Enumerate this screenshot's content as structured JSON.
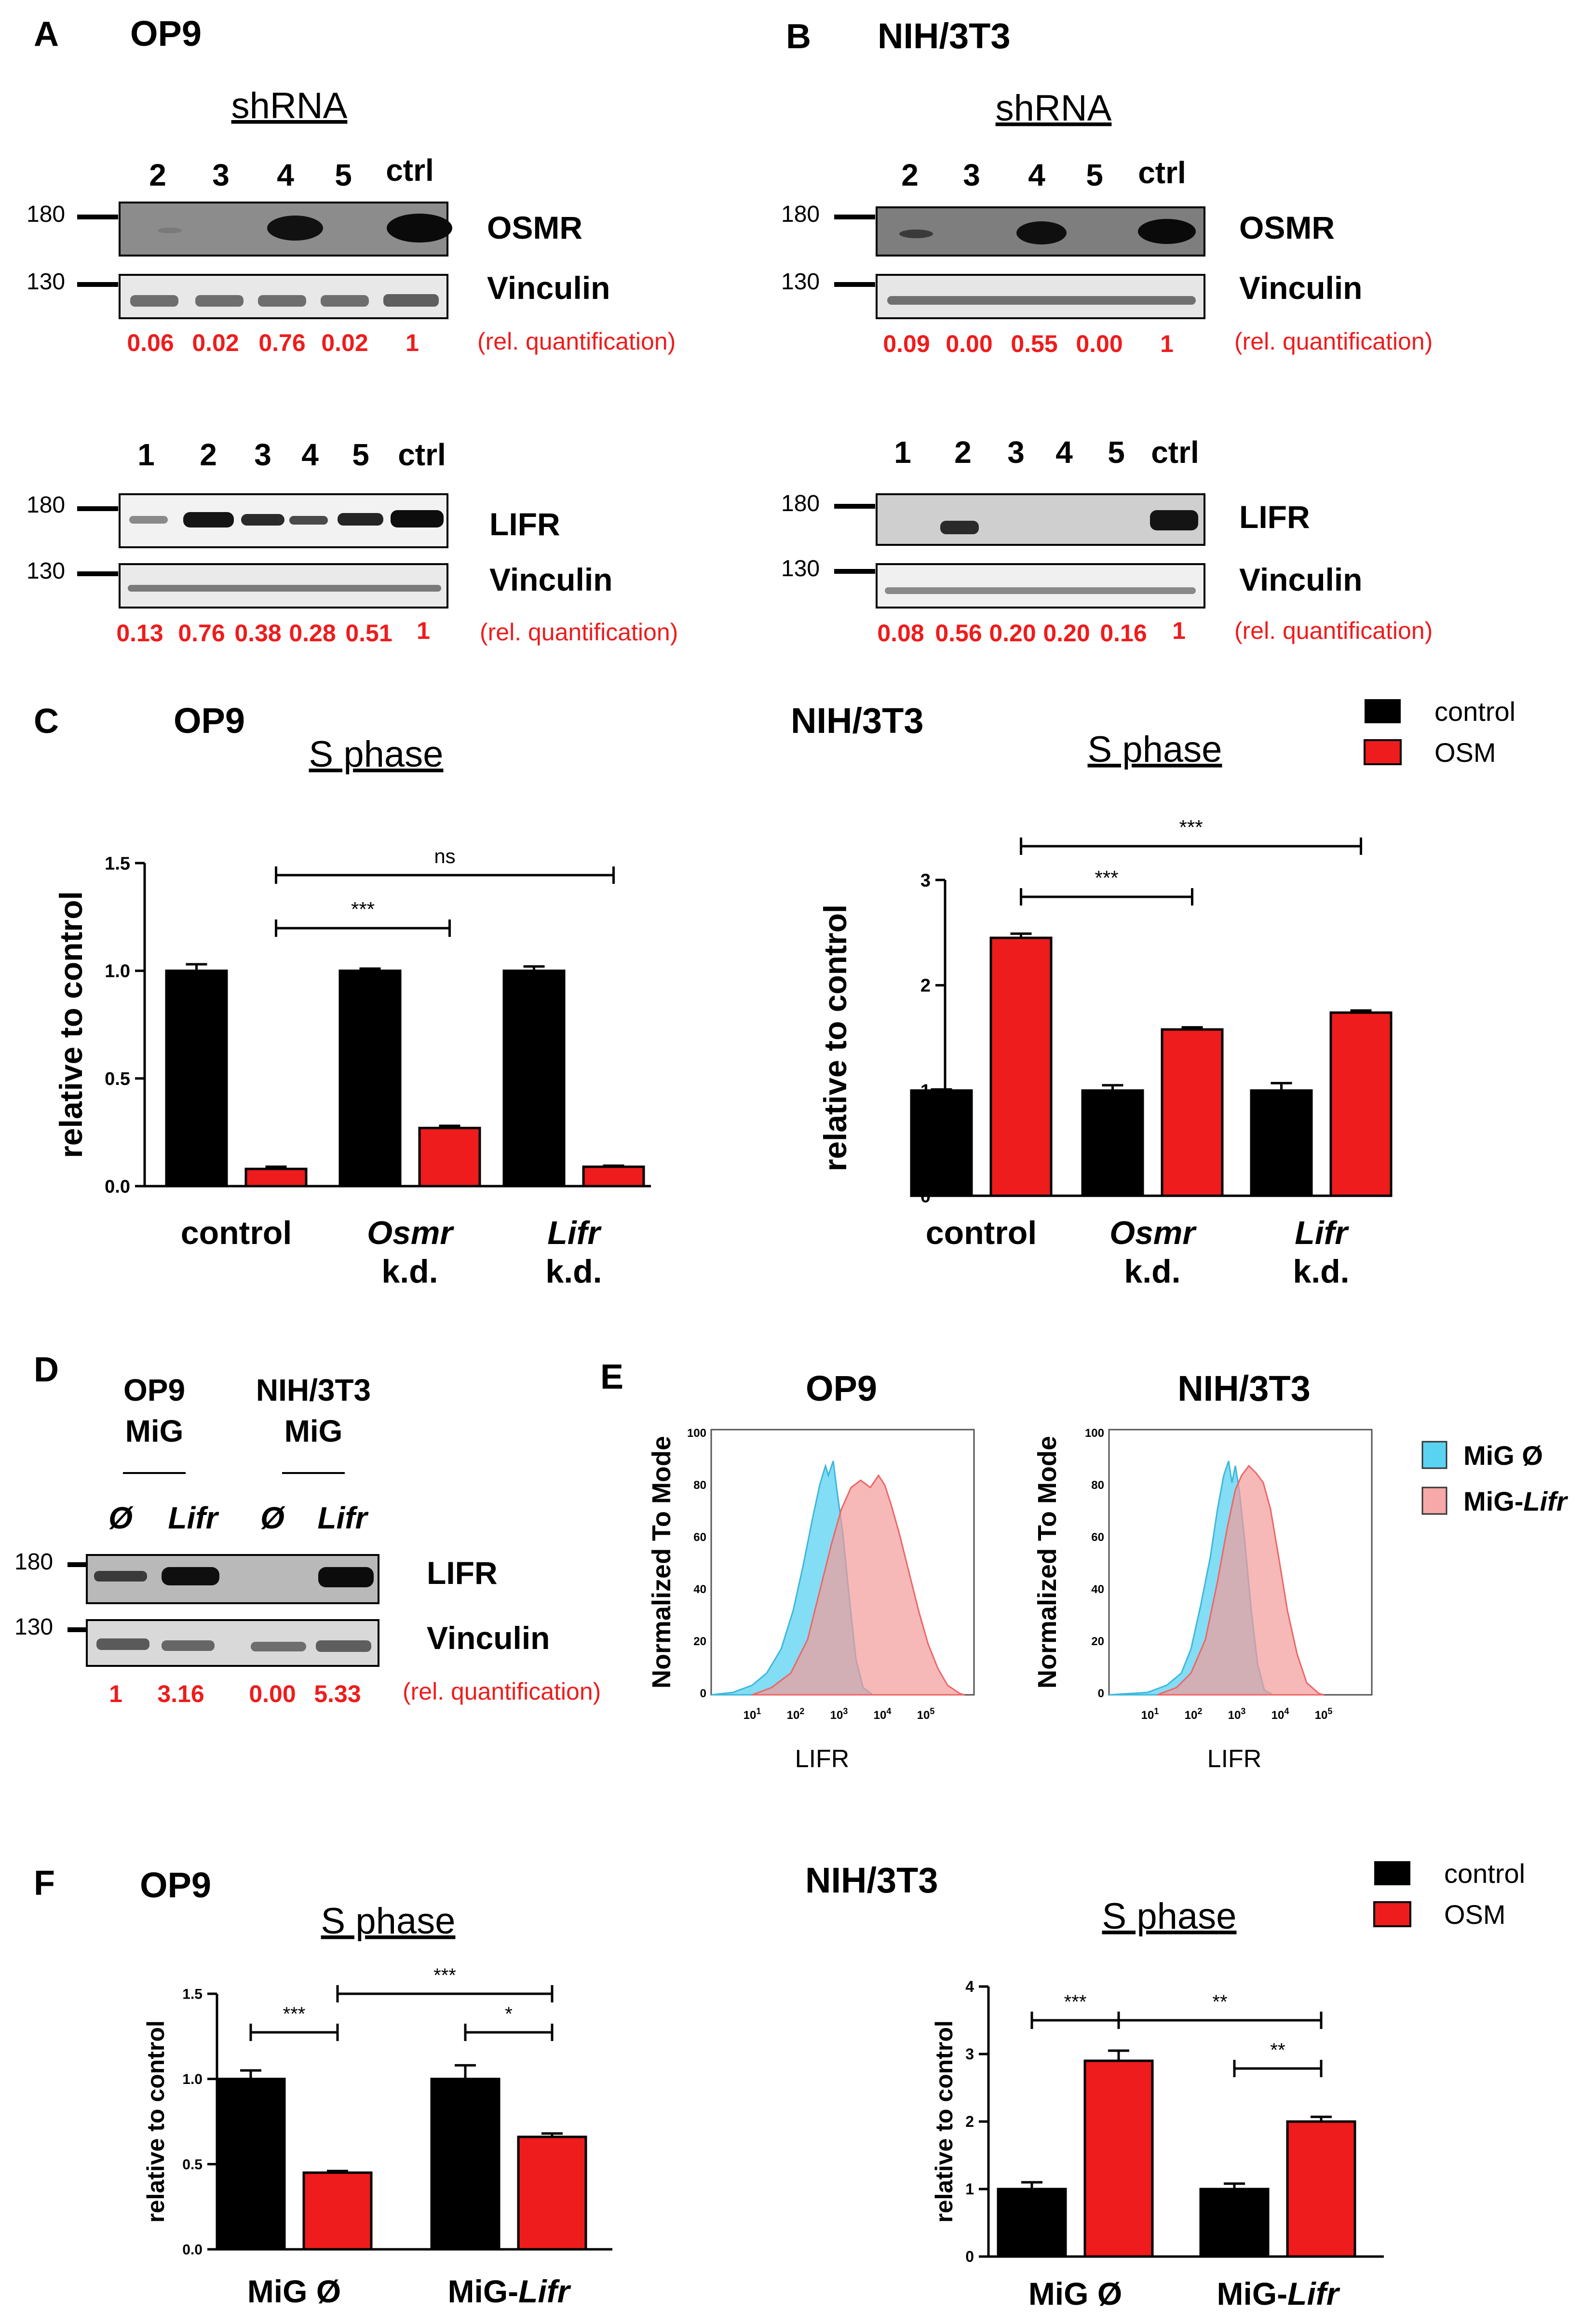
{
  "figure": {
    "panel_labels": [
      "A",
      "B",
      "C",
      "D",
      "E",
      "F"
    ],
    "colors": {
      "control": "#000000",
      "osm": "#ee1c1c",
      "quant_text": "#ee1c1c",
      "mig_empty": "#5ad2f2",
      "mig_lifr": "#f7a8a8"
    },
    "panelA": {
      "cell": "OP9",
      "shrna": "shRNA",
      "lanes_top": [
        "2",
        "3",
        "4",
        "5",
        "ctrl"
      ],
      "lanes_bottom": [
        "1",
        "2",
        "3",
        "4",
        "5",
        "ctrl"
      ],
      "mw": [
        "180",
        "130",
        "180",
        "130"
      ],
      "proteins": [
        "OSMR",
        "Vinculin",
        "LIFR",
        "Vinculin"
      ],
      "quant_top": [
        "0.06",
        "0.02",
        "0.76",
        "0.02",
        "1"
      ],
      "quant_bottom": [
        "0.13",
        "0.76",
        "0.38",
        "0.28",
        "0.51",
        "1"
      ],
      "rel": "(rel. quantification)"
    },
    "panelB": {
      "cell": "NIH/3T3",
      "shrna": "shRNA",
      "lanes_top": [
        "2",
        "3",
        "4",
        "5",
        "ctrl"
      ],
      "lanes_bottom": [
        "1",
        "2",
        "3",
        "4",
        "5",
        "ctrl"
      ],
      "mw": [
        "180",
        "130",
        "180",
        "130"
      ],
      "proteins": [
        "OSMR",
        "Vinculin",
        "LIFR",
        "Vinculin"
      ],
      "quant_top": [
        "0.09",
        "0.00",
        "0.55",
        "0.00",
        "1"
      ],
      "quant_bottom": [
        "0.08",
        "0.56",
        "0.20",
        "0.20",
        "0.16",
        "1"
      ],
      "rel": "(rel. quantification)"
    },
    "panelD": {
      "cells": [
        "OP9",
        "NIH/3T3"
      ],
      "vector": "MiG",
      "lanes": [
        "Ø",
        "Lifr",
        "Ø",
        "Lifr"
      ],
      "mw": [
        "180",
        "130"
      ],
      "proteins": [
        "LIFR",
        "Vinculin"
      ],
      "quant": [
        "1",
        "3.16",
        "0.00",
        "5.33"
      ],
      "rel": "(rel. quantification)"
    },
    "panelE": {
      "titles": [
        "OP9",
        "NIH/3T3"
      ],
      "ylabel": "Normalized To Mode",
      "xlabel": "LIFR",
      "yticks": [
        "0",
        "20",
        "40",
        "60",
        "80",
        "100"
      ],
      "legend_empty": "MiG Ø",
      "legend_lifr_prefix": "MiG-",
      "legend_lifr_gene": "Lifr"
    },
    "legend": {
      "control": "control",
      "osm": "OSM"
    }
  },
  "chart_data": [
    {
      "id": "C-OP9",
      "type": "bar",
      "title": "OP9",
      "subtitle": "S phase",
      "ylabel": "relative to control",
      "ylim": [
        0,
        1.5
      ],
      "yticks": [
        "0.0",
        "0.5",
        "1.0",
        "1.5"
      ],
      "categories": [
        {
          "line1": "control",
          "line2": "",
          "italic": false
        },
        {
          "line1": "Osmr",
          "line2": "k.d.",
          "italic": true
        },
        {
          "line1": "Lifr",
          "line2": "k.d.",
          "italic": true
        }
      ],
      "series": [
        {
          "name": "control",
          "values": [
            1.0,
            1.0,
            1.0
          ],
          "errors": [
            0.03,
            0.01,
            0.02
          ]
        },
        {
          "name": "OSM",
          "values": [
            0.08,
            0.27,
            0.09
          ],
          "errors": [
            0.01,
            0.01,
            0.005
          ]
        }
      ],
      "significance": [
        {
          "label": "***",
          "from": "control|OSM",
          "to": "Osmr k.d.|OSM"
        },
        {
          "label": "ns",
          "from": "control|OSM",
          "to": "Lifr k.d.|OSM"
        }
      ]
    },
    {
      "id": "C-NIH",
      "type": "bar",
      "title": "NIH/3T3",
      "subtitle": "S phase",
      "ylabel": "relative to control",
      "ylim": [
        0,
        3
      ],
      "yticks": [
        "0",
        "1",
        "2",
        "3"
      ],
      "categories": [
        {
          "line1": "control",
          "line2": "",
          "italic": false
        },
        {
          "line1": "Osmr",
          "line2": "k.d.",
          "italic": true
        },
        {
          "line1": "Lifr",
          "line2": "k.d.",
          "italic": true
        }
      ],
      "series": [
        {
          "name": "control",
          "values": [
            1.0,
            1.0,
            1.0
          ],
          "errors": [
            0.01,
            0.05,
            0.07
          ]
        },
        {
          "name": "OSM",
          "values": [
            2.45,
            1.58,
            1.74
          ],
          "errors": [
            0.04,
            0.02,
            0.02
          ]
        }
      ],
      "significance": [
        {
          "label": "***",
          "from": "control|OSM",
          "to": "Osmr k.d.|OSM"
        },
        {
          "label": "***",
          "from": "control|OSM",
          "to": "Lifr k.d.|OSM"
        }
      ]
    },
    {
      "id": "F-OP9",
      "type": "bar",
      "title": "OP9",
      "subtitle": "S phase",
      "ylabel": "relative to control",
      "ylim": [
        0,
        1.5
      ],
      "yticks": [
        "0.0",
        "0.5",
        "1.0",
        "1.5"
      ],
      "categories": [
        {
          "line1": "MiG Ø",
          "line2": "",
          "italic": false,
          "pre": "MiG Ø",
          "ital": ""
        },
        {
          "line1": "MiG-Lifr",
          "line2": "",
          "italic": false,
          "pre": "MiG-",
          "ital": "Lifr"
        }
      ],
      "series": [
        {
          "name": "control",
          "values": [
            1.0,
            1.0
          ],
          "errors": [
            0.05,
            0.08
          ]
        },
        {
          "name": "OSM",
          "values": [
            0.45,
            0.66
          ],
          "errors": [
            0.01,
            0.02
          ]
        }
      ],
      "significance": [
        {
          "label": "***",
          "from": "MiG Ø|control",
          "to": "MiG Ø|OSM"
        },
        {
          "label": "***",
          "from": "MiG Ø|OSM",
          "to": "MiG-Lifr|OSM"
        },
        {
          "label": "*",
          "from": "MiG-Lifr|control",
          "to": "MiG-Lifr|OSM"
        }
      ]
    },
    {
      "id": "F-NIH",
      "type": "bar",
      "title": "NIH/3T3",
      "subtitle": "S phase",
      "ylabel": "relative to control",
      "ylim": [
        0,
        4
      ],
      "yticks": [
        "0",
        "1",
        "2",
        "3",
        "4"
      ],
      "categories": [
        {
          "line1": "MiG Ø",
          "line2": "",
          "italic": false,
          "pre": "MiG Ø",
          "ital": ""
        },
        {
          "line1": "MiG-Lifr",
          "line2": "",
          "italic": false,
          "pre": "MiG-",
          "ital": "Lifr"
        }
      ],
      "series": [
        {
          "name": "control",
          "values": [
            1.0,
            1.0
          ],
          "errors": [
            0.1,
            0.08
          ]
        },
        {
          "name": "OSM",
          "values": [
            2.9,
            2.0
          ],
          "errors": [
            0.15,
            0.07
          ]
        }
      ],
      "significance": [
        {
          "label": "***",
          "from": "MiG Ø|control",
          "to": "MiG Ø|OSM"
        },
        {
          "label": "**",
          "from": "MiG Ø|OSM",
          "to": "MiG-Lifr|OSM"
        },
        {
          "label": "**",
          "from": "MiG-Lifr|control",
          "to": "MiG-Lifr|OSM"
        }
      ]
    }
  ]
}
